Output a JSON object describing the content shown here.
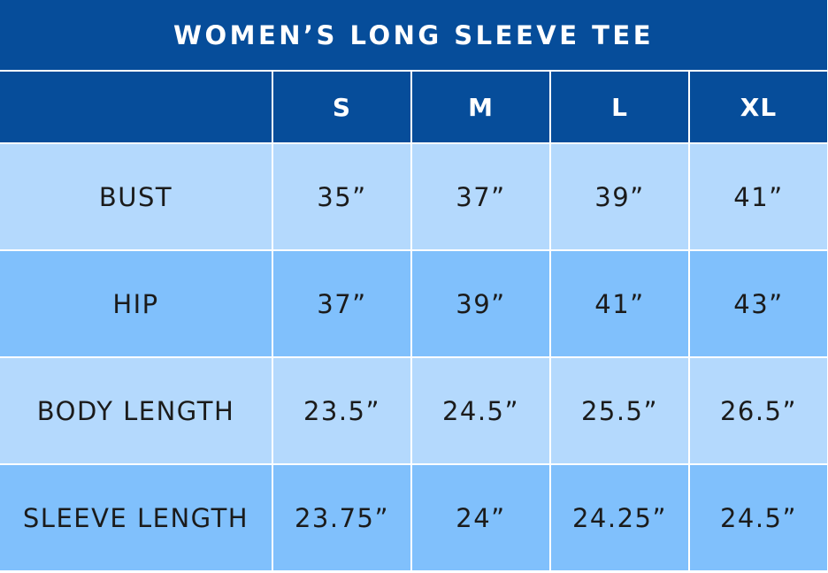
{
  "title": "WOMEN’S LONG SLEEVE TEE",
  "colors": {
    "header_bg": "#064d9a",
    "header_text": "#ffffff",
    "row_light": "#b4d9fd",
    "row_dark": "#80c0fc",
    "body_text": "#1b1b1b"
  },
  "table": {
    "corner": "",
    "columns": [
      "S",
      "M",
      "L",
      "XL"
    ],
    "rows": [
      {
        "label": "BUST",
        "values": [
          "35”",
          "37”",
          "39”",
          "41”"
        ]
      },
      {
        "label": "HIP",
        "values": [
          "37”",
          "39”",
          "41”",
          "43”"
        ]
      },
      {
        "label": "BODY LENGTH",
        "values": [
          "23.5”",
          "24.5”",
          "25.5”",
          "26.5”"
        ]
      },
      {
        "label": "SLEEVE LENGTH",
        "values": [
          "23.75”",
          "24”",
          "24.25”",
          "24.5”"
        ]
      }
    ]
  }
}
